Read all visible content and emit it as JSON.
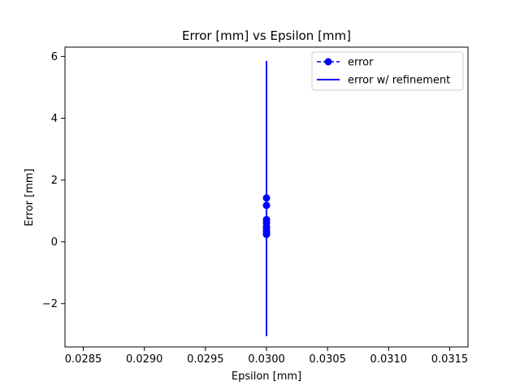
{
  "chart_data": {
    "type": "line",
    "title": "Error [mm] vs Epsilon [mm]",
    "xlabel": "Epsilon [mm]",
    "ylabel": "Error [mm]",
    "xlim": [
      0.02835,
      0.03165
    ],
    "ylim": [
      -3.4,
      6.3
    ],
    "xticks": [
      0.0285,
      0.029,
      0.0295,
      0.03,
      0.0305,
      0.031,
      0.0315
    ],
    "xtick_labels": [
      "0.0285",
      "0.0290",
      "0.0295",
      "0.0300",
      "0.0305",
      "0.0310",
      "0.0315"
    ],
    "yticks": [
      -2,
      0,
      2,
      4,
      6
    ],
    "ytick_labels": [
      "−2",
      "0",
      "2",
      "4",
      "6"
    ],
    "grid": false,
    "legend_position": "top-right",
    "series": [
      {
        "name": "error",
        "style": "dashed-line-circle-markers",
        "color": "#0000ff",
        "x": [
          0.03,
          0.03,
          0.03,
          0.03,
          0.03,
          0.03,
          0.03,
          0.03,
          0.03
        ],
        "y": [
          1.42,
          1.18,
          0.72,
          0.62,
          0.5,
          0.42,
          0.35,
          0.28,
          0.24
        ]
      },
      {
        "name": "error w/ refinement",
        "style": "solid-line",
        "color": "#0000ff",
        "x": [
          0.03,
          0.03
        ],
        "y": [
          5.85,
          -3.05
        ]
      }
    ]
  }
}
